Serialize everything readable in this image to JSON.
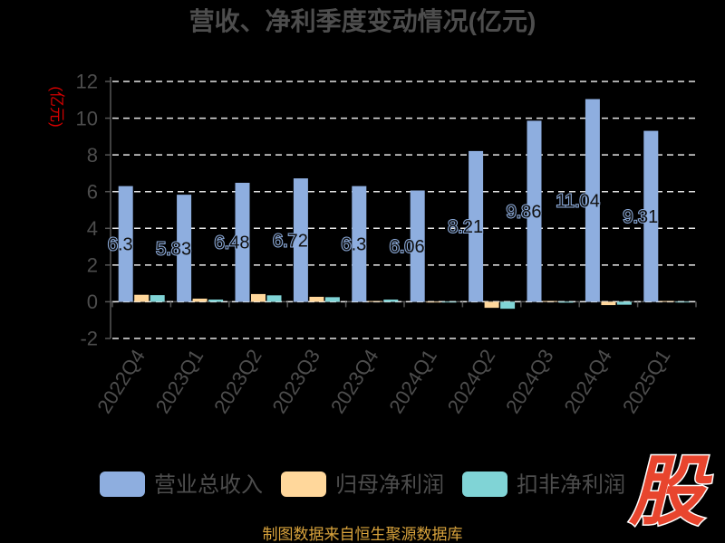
{
  "chart_data": {
    "type": "bar",
    "title": "营收、净利季度变动情况(亿元)",
    "ylabel": "(亿元)",
    "ylabel_color": "#d40000",
    "categories": [
      "2022Q4",
      "2023Q1",
      "2023Q2",
      "2023Q3",
      "2023Q4",
      "2024Q1",
      "2024Q2",
      "2024Q3",
      "2024Q4",
      "2025Q1"
    ],
    "ylim": [
      -2,
      12
    ],
    "yticks": [
      -2,
      0,
      2,
      4,
      6,
      8,
      10,
      12
    ],
    "grid": true,
    "legend_position": "bottom",
    "series": [
      {
        "name": "营业总收入",
        "color": "#8eaedf",
        "show_labels": true,
        "values": [
          6.3,
          5.83,
          6.48,
          6.72,
          6.3,
          6.06,
          8.21,
          9.86,
          11.04,
          9.31
        ]
      },
      {
        "name": "归母净利润",
        "color": "#ffd79b",
        "show_labels": false,
        "values": [
          0.38,
          0.17,
          0.42,
          0.27,
          0.02,
          -0.03,
          -0.33,
          0.03,
          -0.18,
          0.03
        ]
      },
      {
        "name": "扣非净利润",
        "color": "#80d4d6",
        "show_labels": false,
        "values": [
          0.36,
          0.12,
          0.35,
          0.25,
          0.12,
          -0.04,
          -0.38,
          -0.05,
          -0.16,
          -0.03
        ]
      }
    ]
  },
  "footer": {
    "source": "制图数据来自恒生聚源数据库",
    "color": "#d9a33c"
  },
  "logo": {
    "text": "股",
    "color": "#e8452e"
  }
}
